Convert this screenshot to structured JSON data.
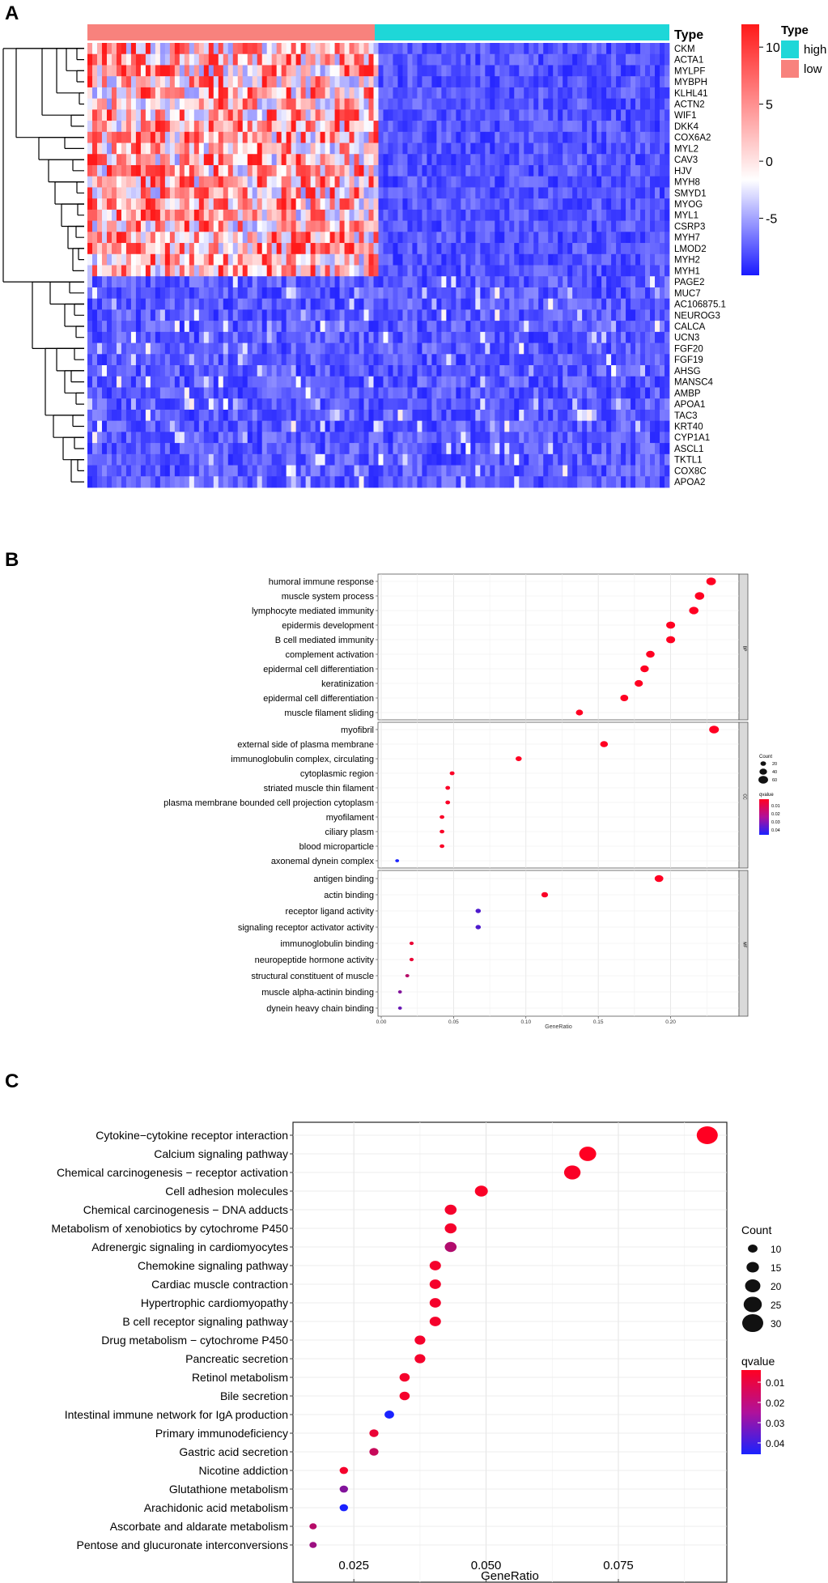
{
  "chart_data": [
    {
      "type": "heatmap",
      "panel_label": "A",
      "annotation_title": "Type",
      "legend_title": "Type",
      "legend_entries": [
        {
          "name": "high",
          "color": "#1ed7d8"
        },
        {
          "name": "low",
          "color": "#f8827d"
        }
      ],
      "colorbar_ticks": [
        10,
        5,
        0,
        -5
      ],
      "color_low": "#1a1aff",
      "color_mid": "#ffffff",
      "color_high": "#ff1a1a",
      "genes": [
        "CKM",
        "ACTA1",
        "MYLPF",
        "MYBPH",
        "KLHL41",
        "ACTN2",
        "WIF1",
        "DKK4",
        "COX6A2",
        "MYL2",
        "CAV3",
        "HJV",
        "MYH8",
        "SMYD1",
        "MYOG",
        "MYL1",
        "CSRP3",
        "MYH7",
        "LMOD2",
        "MYH2",
        "MYH1",
        "PAGE2",
        "MUC7",
        "AC106875.1",
        "NEUROG3",
        "CALCA",
        "UCN3",
        "FGF20",
        "FGF19",
        "AHSG",
        "MANSC4",
        "AMBP",
        "APOA1",
        "TAC3",
        "KRT40",
        "CYP1A1",
        "ASCL1",
        "TKTL1",
        "COX8C",
        "APOA2"
      ]
    },
    {
      "type": "scatter",
      "panel_label": "B",
      "xlabel": "GeneRatio",
      "xticks": [
        "0.00",
        "0.05",
        "0.10",
        "0.15",
        "0.20"
      ],
      "xlim": [
        0,
        0.245
      ],
      "facets": [
        {
          "strip": "BP",
          "terms": [
            {
              "name": "humoral immune response",
              "x": 0.228,
              "count": 60,
              "q": 0.001
            },
            {
              "name": "muscle system process",
              "x": 0.22,
              "count": 58,
              "q": 0.001
            },
            {
              "name": "lymphocyte mediated immunity",
              "x": 0.216,
              "count": 57,
              "q": 0.001
            },
            {
              "name": "epidermis development",
              "x": 0.2,
              "count": 53,
              "q": 0.001
            },
            {
              "name": "B cell mediated immunity",
              "x": 0.2,
              "count": 53,
              "q": 0.001
            },
            {
              "name": "complement activation",
              "x": 0.186,
              "count": 49,
              "q": 0.001
            },
            {
              "name": "epidermal cell differentiation",
              "x": 0.182,
              "count": 48,
              "q": 0.001
            },
            {
              "name": "keratinization",
              "x": 0.178,
              "count": 47,
              "q": 0.001
            },
            {
              "name": "epidermal cell differentiation",
              "x": 0.168,
              "count": 44,
              "q": 0.001
            },
            {
              "name": "muscle filament sliding",
              "x": 0.137,
              "count": 36,
              "q": 0.001
            }
          ]
        },
        {
          "strip": "CC",
          "terms": [
            {
              "name": "myofibril",
              "x": 0.23,
              "count": 61,
              "q": 0.001
            },
            {
              "name": "external side of plasma membrane",
              "x": 0.154,
              "count": 41,
              "q": 0.001
            },
            {
              "name": "immunoglobulin complex, circulating",
              "x": 0.095,
              "count": 25,
              "q": 0.001
            },
            {
              "name": "cytoplasmic region",
              "x": 0.049,
              "count": 13,
              "q": 0.002
            },
            {
              "name": "striated muscle thin filament",
              "x": 0.046,
              "count": 12,
              "q": 0.002
            },
            {
              "name": "plasma membrane bounded cell projection cytoplasm",
              "x": 0.046,
              "count": 12,
              "q": 0.002
            },
            {
              "name": "myofilament",
              "x": 0.042,
              "count": 11,
              "q": 0.002
            },
            {
              "name": "ciliary plasm",
              "x": 0.042,
              "count": 11,
              "q": 0.002
            },
            {
              "name": "blood microparticle",
              "x": 0.042,
              "count": 11,
              "q": 0.002
            },
            {
              "name": "axonemal dynein complex",
              "x": 0.011,
              "count": 3,
              "q": 0.045
            }
          ]
        },
        {
          "strip": "MF",
          "terms": [
            {
              "name": "antigen binding",
              "x": 0.192,
              "count": 51,
              "q": 0.001
            },
            {
              "name": "actin binding",
              "x": 0.113,
              "count": 30,
              "q": 0.002
            },
            {
              "name": "receptor ligand activity",
              "x": 0.067,
              "count": 18,
              "q": 0.035
            },
            {
              "name": "signaling receptor activator activity",
              "x": 0.067,
              "count": 18,
              "q": 0.035
            },
            {
              "name": "immunoglobulin binding",
              "x": 0.021,
              "count": 6,
              "q": 0.005
            },
            {
              "name": "neuropeptide hormone activity",
              "x": 0.021,
              "count": 6,
              "q": 0.005
            },
            {
              "name": "structural constituent of muscle",
              "x": 0.018,
              "count": 5,
              "q": 0.015
            },
            {
              "name": "muscle alpha-actinin binding",
              "x": 0.013,
              "count": 4,
              "q": 0.025
            },
            {
              "name": "dynein heavy chain binding",
              "x": 0.013,
              "count": 4,
              "q": 0.03
            }
          ]
        }
      ],
      "size_legend": {
        "title": "Count",
        "values": [
          "20",
          "40",
          "60"
        ]
      },
      "color_legend": {
        "title": "qvalue",
        "values": [
          "0.01",
          "0.02",
          "0.03",
          "0.04"
        ]
      }
    },
    {
      "type": "scatter",
      "panel_label": "C",
      "xlabel": "GeneRatio",
      "xticks": [
        {
          "label": "0.025",
          "value": 0.025
        },
        {
          "label": "0.050",
          "value": 0.05
        },
        {
          "label": "0.075",
          "value": 0.075
        }
      ],
      "xlim": [
        0.0135,
        0.0955
      ],
      "terms": [
        {
          "name": "Cytokine−cytokine receptor interaction",
          "x": 0.0918,
          "count": 30,
          "q": 0.001
        },
        {
          "name": "Calcium signaling pathway",
          "x": 0.0692,
          "count": 23,
          "q": 0.001
        },
        {
          "name": "Chemical carcinogenesis − receptor activation",
          "x": 0.0663,
          "count": 22,
          "q": 0.002
        },
        {
          "name": "Cell adhesion molecules",
          "x": 0.0491,
          "count": 16,
          "q": 0.002
        },
        {
          "name": "Chemical carcinogenesis − DNA adducts",
          "x": 0.0433,
          "count": 14,
          "q": 0.003
        },
        {
          "name": "Metabolism of xenobiotics by cytochrome P450",
          "x": 0.0433,
          "count": 14,
          "q": 0.003
        },
        {
          "name": "Adrenergic signaling in cardiomyocytes",
          "x": 0.0433,
          "count": 14,
          "q": 0.016
        },
        {
          "name": "Chemokine signaling pathway",
          "x": 0.0404,
          "count": 13,
          "q": 0.003
        },
        {
          "name": "Cardiac muscle contraction",
          "x": 0.0404,
          "count": 13,
          "q": 0.003
        },
        {
          "name": "Hypertrophic cardiomyopathy",
          "x": 0.0404,
          "count": 13,
          "q": 0.003
        },
        {
          "name": "B cell receptor signaling pathway",
          "x": 0.0404,
          "count": 13,
          "q": 0.003
        },
        {
          "name": "Drug metabolism − cytochrome P450",
          "x": 0.0375,
          "count": 12,
          "q": 0.003
        },
        {
          "name": "Pancreatic secretion",
          "x": 0.0375,
          "count": 12,
          "q": 0.003
        },
        {
          "name": "Retinol metabolism",
          "x": 0.0346,
          "count": 11,
          "q": 0.003
        },
        {
          "name": "Bile secretion",
          "x": 0.0346,
          "count": 11,
          "q": 0.003
        },
        {
          "name": "Intestinal immune network for IgA production",
          "x": 0.0317,
          "count": 10,
          "q": 0.045
        },
        {
          "name": "Primary immunodeficiency",
          "x": 0.0288,
          "count": 9,
          "q": 0.005
        },
        {
          "name": "Gastric acid secretion",
          "x": 0.0288,
          "count": 9,
          "q": 0.012
        },
        {
          "name": "Nicotine addiction",
          "x": 0.0231,
          "count": 8,
          "q": 0.003
        },
        {
          "name": "Glutathione metabolism",
          "x": 0.0231,
          "count": 8,
          "q": 0.025
        },
        {
          "name": "Arachidonic acid metabolism",
          "x": 0.0231,
          "count": 8,
          "q": 0.045
        },
        {
          "name": "Ascorbate and aldarate metabolism",
          "x": 0.0173,
          "count": 6,
          "q": 0.015
        },
        {
          "name": "Pentose and glucuronate interconversions",
          "x": 0.0173,
          "count": 6,
          "q": 0.02
        }
      ],
      "size_legend": {
        "title": "Count",
        "values": [
          10,
          15,
          20,
          25,
          30
        ]
      },
      "color_legend": {
        "title": "qvalue",
        "values": [
          "0.01",
          "0.02",
          "0.03",
          "0.04"
        ]
      }
    }
  ]
}
